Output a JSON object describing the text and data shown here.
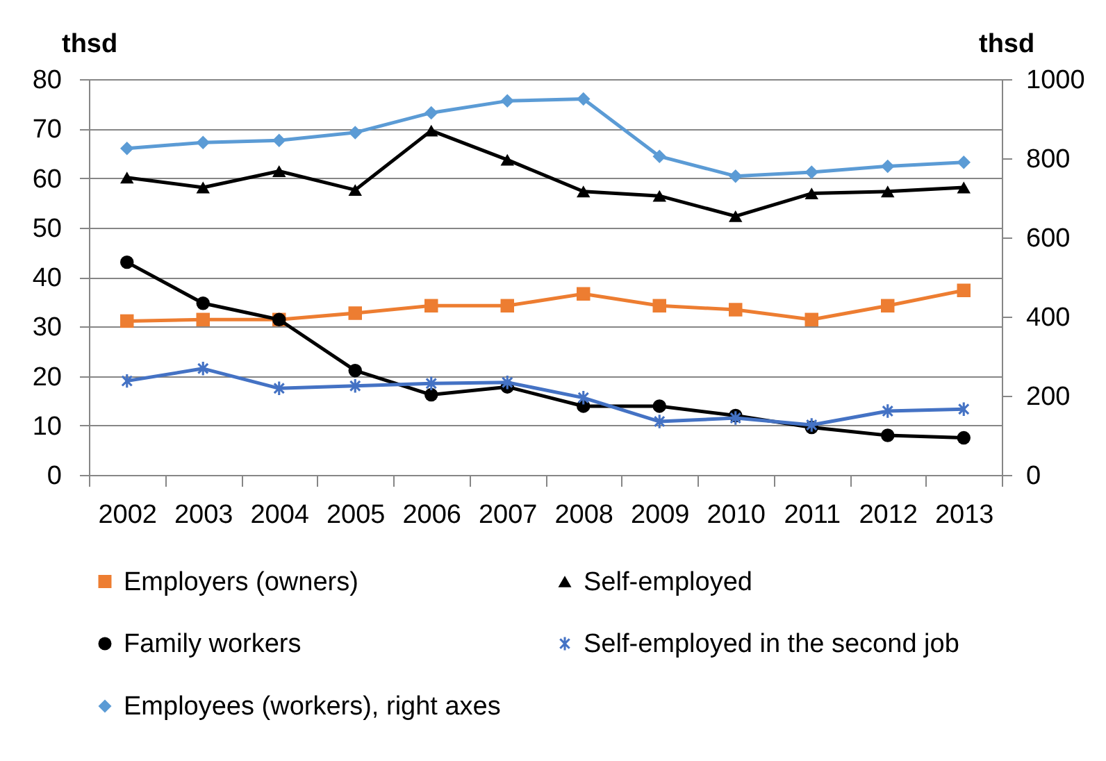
{
  "chart_data": {
    "type": "line",
    "ylabel": "thsd",
    "y2label": "thsd",
    "categories": [
      "2002",
      "2003",
      "2004",
      "2005",
      "2006",
      "2007",
      "2008",
      "2009",
      "2010",
      "2011",
      "2012",
      "2013"
    ],
    "series": [
      {
        "name": "Employers (owners)",
        "color": "#ed7d31",
        "marker": "square",
        "values": [
          31.1,
          31.4,
          31.4,
          32.7,
          34.2,
          34.2,
          36.6,
          34.2,
          33.4,
          31.4,
          34.2,
          37.3
        ]
      },
      {
        "name": "Self-employed",
        "color": "#000000",
        "marker": "triangle",
        "values": [
          60.1,
          58.1,
          61.4,
          57.6,
          69.6,
          63.7,
          57.3,
          56.4,
          52.3,
          56.9,
          57.3,
          58.1
        ]
      },
      {
        "name": "Family workers",
        "color": "#000000",
        "marker": "circle",
        "values": [
          43.0,
          34.7,
          31.4,
          21.1,
          16.2,
          17.8,
          13.9,
          13.9,
          12.0,
          9.6,
          8.0,
          7.5
        ]
      },
      {
        "name": "Self-employed in the second job",
        "color": "#4472c4",
        "marker": "star",
        "values": [
          19.0,
          21.5,
          17.5,
          18.0,
          18.5,
          18.7,
          15.6,
          10.8,
          11.5,
          10.1,
          12.9,
          13.3
        ]
      },
      {
        "name": "Employees (workers), right axes",
        "color": "#5b9bd5",
        "marker": "diamond",
        "axis": "y2",
        "values": [
          825,
          840,
          845,
          865,
          915,
          945,
          950,
          805,
          755,
          765,
          780,
          790
        ]
      }
    ],
    "ylim": [
      0,
      80
    ],
    "yticks": [
      0,
      10,
      20,
      30,
      40,
      50,
      60,
      70,
      80
    ],
    "y2lim": [
      0,
      1000
    ],
    "y2ticks": [
      0,
      200,
      400,
      600,
      800,
      1000
    ],
    "grid": "y",
    "legend": "bottom"
  }
}
